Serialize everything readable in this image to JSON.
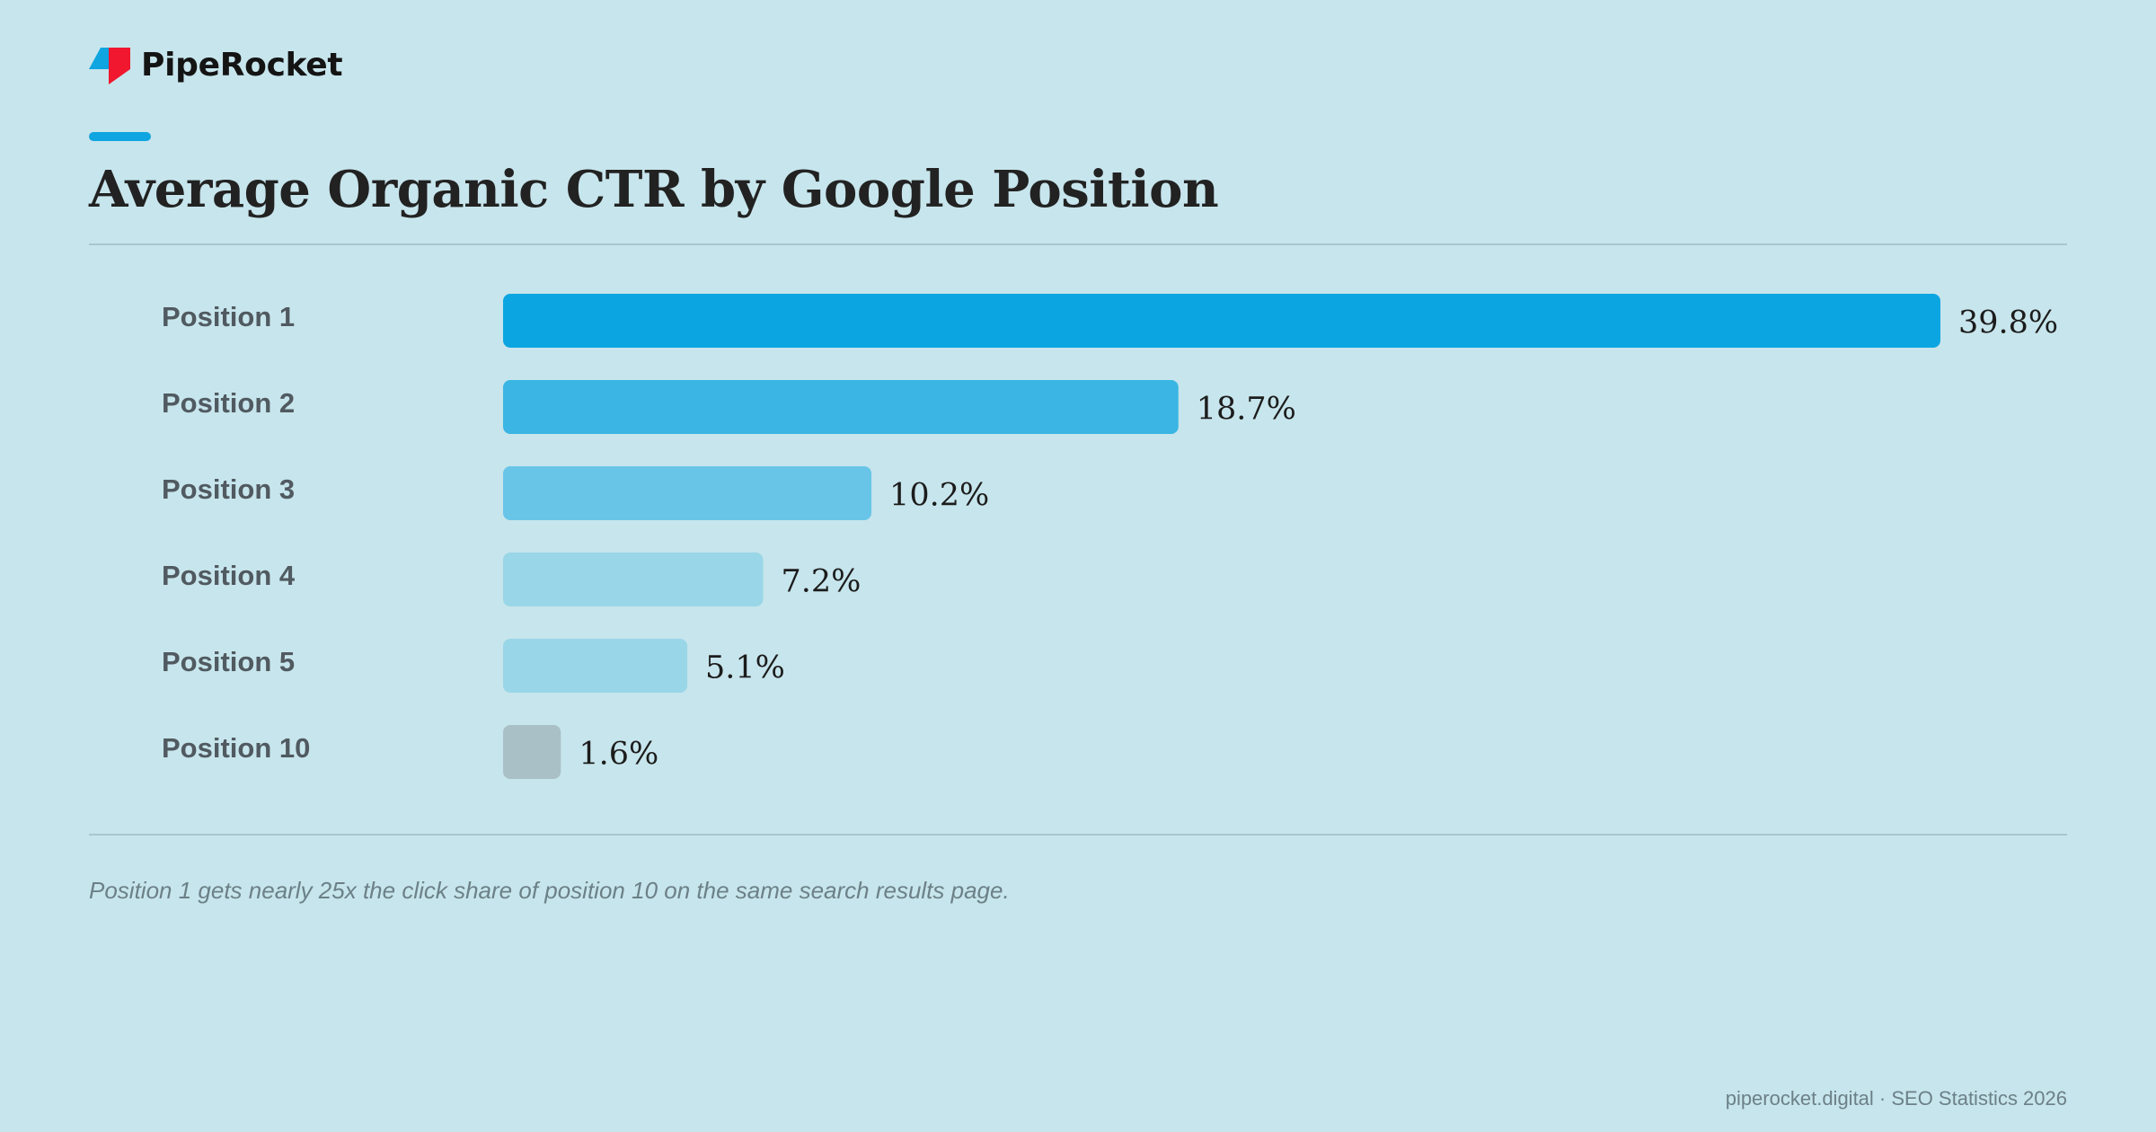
{
  "brand": {
    "name": "PipeRocket",
    "logo_icon": "piperocket-logo-icon",
    "logo_colors": {
      "blue": "#0ea5e0",
      "red": "#f0172f"
    }
  },
  "accent_color": "#0ea5e0",
  "note": "Position 1 gets nearly 25x the click share of position 10 on the same search results page.",
  "footer": "piperocket.digital · SEO Statistics 2026",
  "chart_data": {
    "type": "bar",
    "orientation": "horizontal",
    "title": "Average Organic CTR by Google Position",
    "xlabel": "",
    "ylabel": "",
    "categories": [
      "Position 1",
      "Position 2",
      "Position 3",
      "Position 4",
      "Position 5",
      "Position 10"
    ],
    "values": [
      39.8,
      18.7,
      10.2,
      7.2,
      5.1,
      1.6
    ],
    "value_labels": [
      "39.8%",
      "18.7%",
      "10.2%",
      "7.2%",
      "5.1%",
      "1.6%"
    ],
    "unit": "%",
    "xlim": [
      0,
      39.8
    ],
    "grid": false,
    "legend": "none",
    "bar_colors": [
      "#0ba6e2",
      "#3ab5e4",
      "#68c5e8",
      "#99d6e8",
      "#99d6e8",
      "#a9c0c6"
    ]
  }
}
